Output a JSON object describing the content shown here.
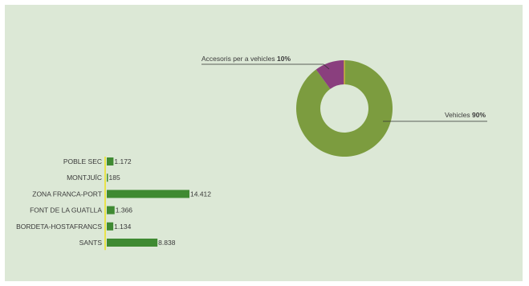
{
  "colors": {
    "background": "#dce8d6",
    "bar": "#3f8a32",
    "axis": "#e8e24a",
    "donut_main": "#7c9c3f",
    "donut_accent": "#8a3f7e",
    "donut_divider": "#d9c23a",
    "leader": "#333333"
  },
  "chart_data": [
    {
      "type": "pie",
      "variant": "donut",
      "slices": [
        {
          "label": "Vehicles",
          "value": 90,
          "value_label": "90%"
        },
        {
          "label": "Accesoris per a vehicles",
          "value": 10,
          "value_label": "10%"
        }
      ],
      "title": "",
      "legend": "none"
    },
    {
      "type": "bar",
      "orientation": "horizontal",
      "categories": [
        "POBLE SEC",
        "MONTJUÏC",
        "ZONA FRANCA-PORT",
        "FONT DE LA GUATLLA",
        "BORDETA-HOSTAFRANCS",
        "SANTS"
      ],
      "values": [
        1172,
        185,
        14412,
        1366,
        1134,
        8838
      ],
      "value_labels": [
        "1.172",
        "185",
        "14.412",
        "1.366",
        "1.134",
        "8.838"
      ],
      "title": "",
      "xlabel": "",
      "ylabel": "",
      "grid": false
    }
  ]
}
